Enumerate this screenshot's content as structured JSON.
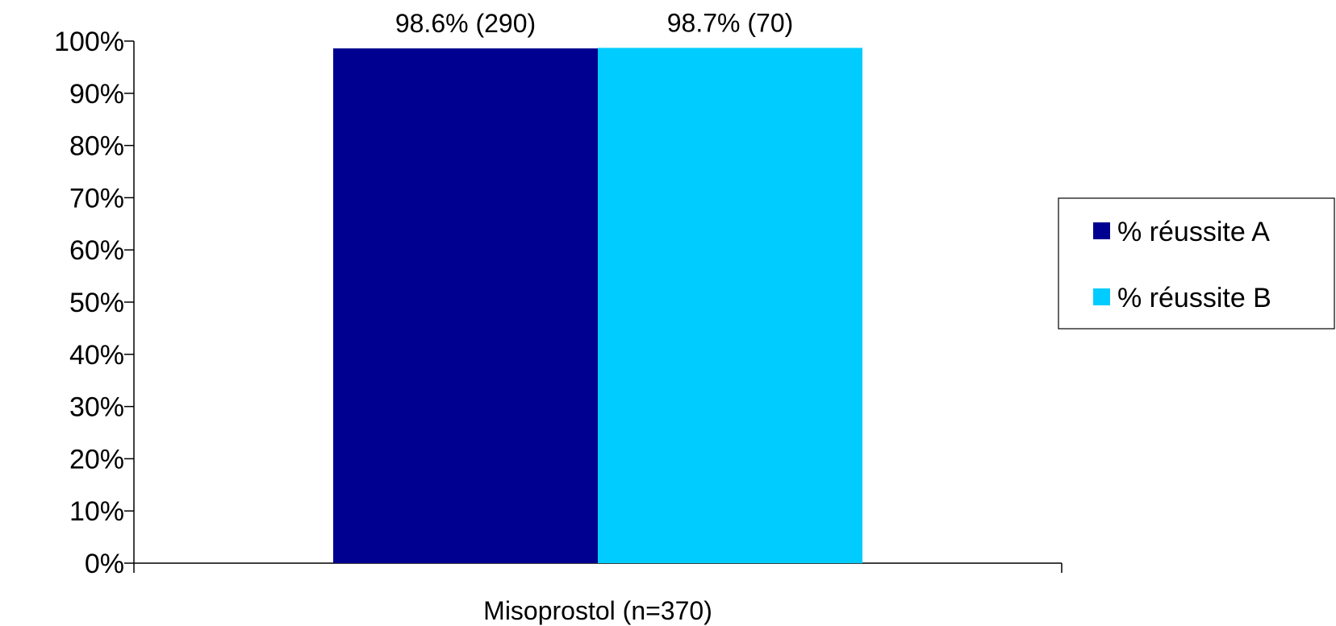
{
  "chart_data": {
    "type": "bar",
    "categories": [
      "Misoprostol  (n=370)"
    ],
    "series": [
      {
        "name": "% réussite A",
        "values": [
          98.6
        ],
        "data_labels": [
          "98.6% (290)"
        ],
        "color": "#000090"
      },
      {
        "name": "% réussite B",
        "values": [
          98.7
        ],
        "data_labels": [
          "98.7% (70)"
        ],
        "color": "#00CCFF"
      }
    ],
    "ylim": [
      0,
      100
    ],
    "yticks": [
      0,
      10,
      20,
      30,
      40,
      50,
      60,
      70,
      80,
      90,
      100
    ],
    "ytick_labels": [
      "0%",
      "10%",
      "20%",
      "30%",
      "40%",
      "50%",
      "60%",
      "70%",
      "80%",
      "90%",
      "100%"
    ],
    "grid": false,
    "legend_position": "right"
  }
}
